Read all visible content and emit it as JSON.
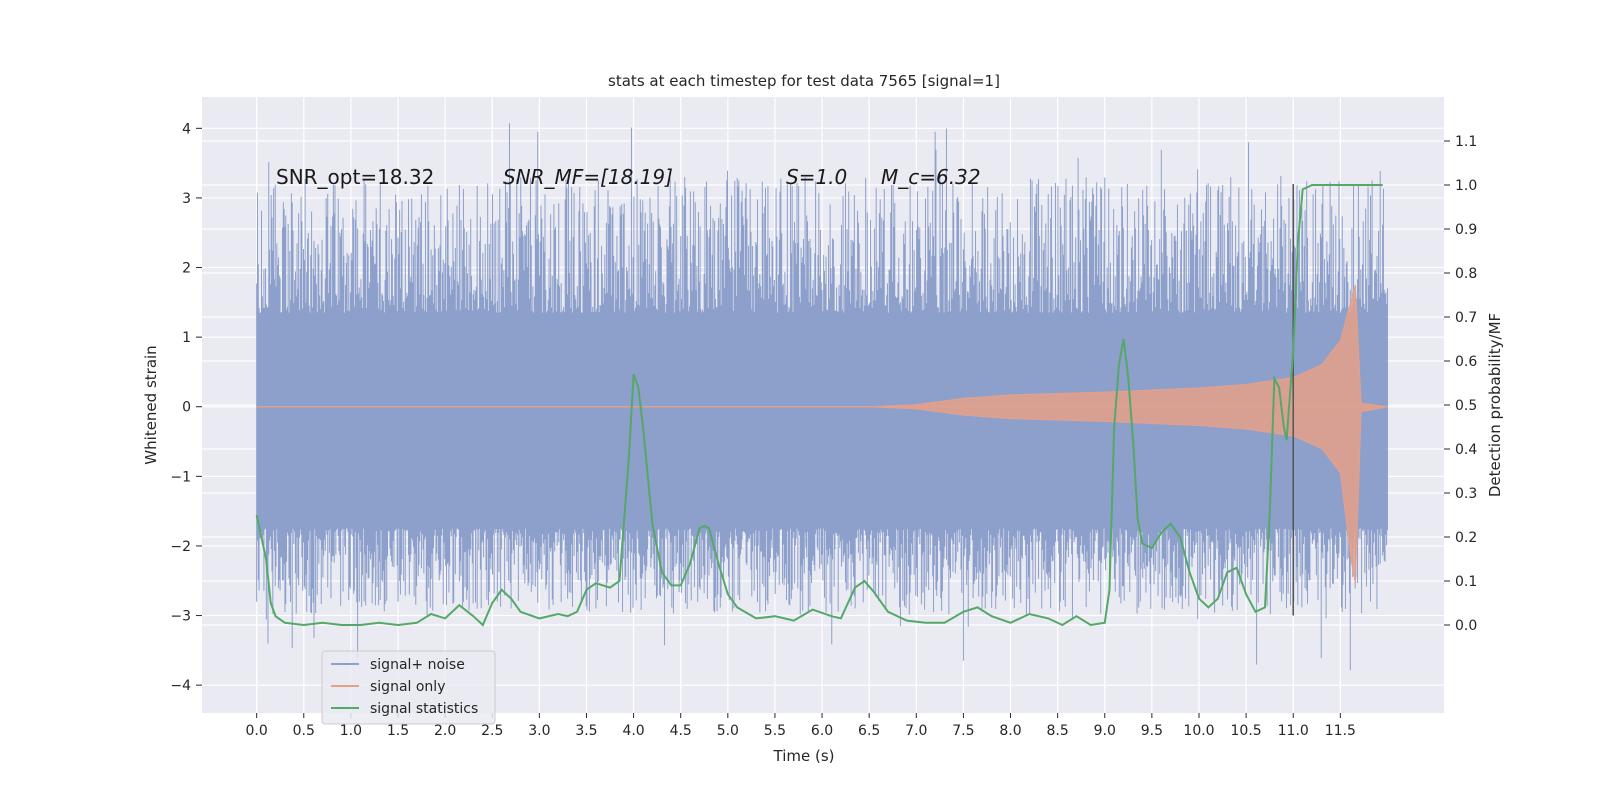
{
  "chart_data": {
    "type": "line",
    "title": "stats at each timestep for test data 7565 [signal=1]",
    "xlabel": "Time (s)",
    "ylabel": "Whitened strain",
    "ylabel_right": "Detection probability/MF",
    "xlim": [
      -0.58,
      12.6
    ],
    "ylim": [
      -4.4,
      4.45
    ],
    "ylim_right": [
      -0.2,
      1.2
    ],
    "x_ticks": [
      0.0,
      0.5,
      1.0,
      1.5,
      2.0,
      2.5,
      3.0,
      3.5,
      4.0,
      4.5,
      5.0,
      5.5,
      6.0,
      6.5,
      7.0,
      7.5,
      8.0,
      8.5,
      9.0,
      9.5,
      10.0,
      10.5,
      11.0,
      11.5
    ],
    "x_tick_labels": [
      "0.0",
      "0.5",
      "1.0",
      "1.5",
      "2.0",
      "2.5",
      "3.0",
      "3.5",
      "4.0",
      "4.5",
      "5.0",
      "5.5",
      "6.0",
      "6.5",
      "7.0",
      "7.5",
      "8.0",
      "8.5",
      "9.0",
      "9.5",
      "10.0",
      "10.5",
      "11.0",
      "11.5"
    ],
    "y_ticks": [
      -4,
      -3,
      -2,
      -1,
      0,
      1,
      2,
      3,
      4
    ],
    "y_tick_labels": [
      "−4",
      "−3",
      "−2",
      "−1",
      "0",
      "1",
      "2",
      "3",
      "4"
    ],
    "y_right_ticks": [
      0.0,
      0.1,
      0.2,
      0.3,
      0.4,
      0.5,
      0.6,
      0.7,
      0.8,
      0.9,
      1.0,
      1.1
    ],
    "y_right_tick_labels": [
      "0.0",
      "0.1",
      "0.2",
      "0.3",
      "0.4",
      "0.5",
      "0.6",
      "0.7",
      "0.8",
      "0.9",
      "1.0",
      "1.1"
    ],
    "grid": true,
    "legend_placement": "lower-left",
    "annotations": [
      {
        "text": "SNR_opt=18.32",
        "x": 0.2,
        "y": 3.3
      },
      {
        "text": "SNR_MF=[18.19]",
        "x": 2.6,
        "y": 3.3
      },
      {
        "text": "S=1.0",
        "x": 5.6,
        "y": 3.3
      },
      {
        "text": "M_c=6.32",
        "x": 6.6,
        "y": 3.3
      }
    ],
    "vline": {
      "x": 11.0,
      "y_range": [
        -3.0,
        3.2
      ],
      "color": "#555555"
    },
    "series": [
      {
        "name": "signal+ noise",
        "color": "#8da0cb",
        "kind": "noise-band",
        "x_range": [
          0.0,
          12.0
        ],
        "core_band": [
          -1.75,
          1.35
        ],
        "peak_max": 4.1,
        "peak_min": -3.8
      },
      {
        "name": "signal only",
        "color": "#e5a08a",
        "kind": "chirp-envelope",
        "x": [
          0.0,
          5.0,
          6.5,
          7.0,
          7.5,
          8.0,
          8.5,
          9.0,
          9.5,
          10.0,
          10.5,
          11.0,
          11.3,
          11.5,
          11.62,
          11.66,
          11.72,
          12.0
        ],
        "envelope": [
          0.0,
          0.0,
          0.0,
          0.03,
          0.12,
          0.17,
          0.19,
          0.21,
          0.24,
          0.27,
          0.32,
          0.42,
          0.6,
          0.95,
          1.55,
          1.75,
          0.05,
          0.0
        ]
      },
      {
        "name": "signal statistics",
        "color": "#55a868",
        "kind": "line",
        "axis": "right",
        "x": [
          0.0,
          0.05,
          0.1,
          0.15,
          0.2,
          0.3,
          0.5,
          0.7,
          0.9,
          1.1,
          1.3,
          1.5,
          1.7,
          1.85,
          2.0,
          2.15,
          2.3,
          2.4,
          2.5,
          2.6,
          2.7,
          2.8,
          3.0,
          3.2,
          3.3,
          3.4,
          3.5,
          3.6,
          3.75,
          3.85,
          3.95,
          4.0,
          4.05,
          4.1,
          4.2,
          4.3,
          4.4,
          4.5,
          4.6,
          4.7,
          4.75,
          4.8,
          4.9,
          5.0,
          5.1,
          5.3,
          5.5,
          5.7,
          5.9,
          6.1,
          6.2,
          6.35,
          6.45,
          6.55,
          6.7,
          6.9,
          7.1,
          7.3,
          7.5,
          7.65,
          7.8,
          8.0,
          8.2,
          8.4,
          8.55,
          8.7,
          8.85,
          9.0,
          9.05,
          9.1,
          9.15,
          9.2,
          9.25,
          9.3,
          9.35,
          9.4,
          9.5,
          9.6,
          9.7,
          9.8,
          9.9,
          10.0,
          10.1,
          10.2,
          10.3,
          10.4,
          10.5,
          10.6,
          10.7,
          10.75,
          10.8,
          10.85,
          10.9,
          10.93,
          10.95,
          11.0,
          11.05,
          11.1,
          11.2,
          11.4,
          11.6,
          11.8,
          11.95
        ],
        "y": [
          0.25,
          0.2,
          0.15,
          0.05,
          0.02,
          0.005,
          0.0,
          0.005,
          0.0,
          0.0,
          0.005,
          0.0,
          0.005,
          0.025,
          0.015,
          0.045,
          0.02,
          0.0,
          0.05,
          0.08,
          0.06,
          0.03,
          0.015,
          0.025,
          0.02,
          0.03,
          0.08,
          0.095,
          0.085,
          0.1,
          0.38,
          0.57,
          0.54,
          0.45,
          0.23,
          0.12,
          0.09,
          0.09,
          0.14,
          0.22,
          0.225,
          0.22,
          0.14,
          0.07,
          0.04,
          0.015,
          0.02,
          0.01,
          0.035,
          0.02,
          0.015,
          0.085,
          0.1,
          0.075,
          0.03,
          0.01,
          0.005,
          0.005,
          0.03,
          0.04,
          0.02,
          0.005,
          0.025,
          0.015,
          0.0,
          0.02,
          0.0,
          0.005,
          0.08,
          0.45,
          0.59,
          0.65,
          0.56,
          0.42,
          0.24,
          0.185,
          0.175,
          0.21,
          0.23,
          0.2,
          0.12,
          0.06,
          0.04,
          0.06,
          0.12,
          0.13,
          0.07,
          0.03,
          0.04,
          0.25,
          0.56,
          0.54,
          0.45,
          0.42,
          0.48,
          0.62,
          0.87,
          0.99,
          1.0,
          1.0,
          1.0,
          1.0,
          1.0
        ]
      }
    ]
  }
}
